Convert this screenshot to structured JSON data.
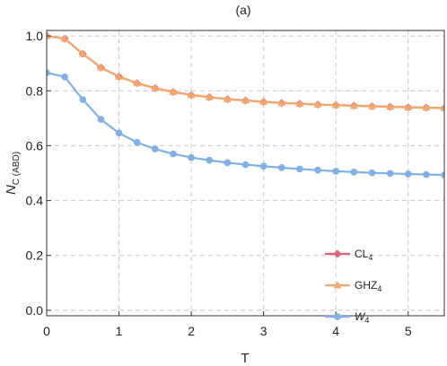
{
  "chart_data": {
    "type": "line",
    "title": "(a)",
    "xlabel": "T",
    "ylabel": "N",
    "ylabel_sub": "C (ABD)",
    "xlim": [
      0,
      5.5
    ],
    "ylim": [
      -0.02,
      1.02
    ],
    "x_ticks": [
      0,
      1,
      2,
      3,
      4,
      5
    ],
    "y_ticks": [
      0.0,
      0.2,
      0.4,
      0.6,
      0.8,
      1.0
    ],
    "x_tick_labels": [
      "0",
      "1",
      "2",
      "3",
      "4",
      "5"
    ],
    "y_tick_labels": [
      "0.0",
      "0.2",
      "0.4",
      "0.6",
      "0.8",
      "1.0"
    ],
    "grid": true,
    "legend_position": "bottom-right",
    "x": [
      0,
      0.25,
      0.5,
      0.75,
      1.0,
      1.25,
      1.5,
      1.75,
      2.0,
      2.25,
      2.5,
      2.75,
      3.0,
      3.25,
      3.5,
      3.75,
      4.0,
      4.25,
      4.5,
      4.75,
      5.0,
      5.25,
      5.5
    ],
    "series": [
      {
        "name": "CL",
        "name_sub": "4",
        "color": "#e0607e",
        "marker": "diamond",
        "values": [
          1.0,
          0.99,
          0.935,
          0.885,
          0.852,
          0.828,
          0.81,
          0.796,
          0.785,
          0.777,
          0.77,
          0.765,
          0.76,
          0.756,
          0.753,
          0.75,
          0.748,
          0.746,
          0.744,
          0.742,
          0.74,
          0.739,
          0.737
        ]
      },
      {
        "name": "GHZ",
        "name_sub": "4",
        "color": "#f4a76a",
        "marker": "triangle",
        "values": [
          1.0,
          0.99,
          0.935,
          0.885,
          0.852,
          0.828,
          0.81,
          0.796,
          0.785,
          0.777,
          0.77,
          0.765,
          0.76,
          0.756,
          0.753,
          0.75,
          0.748,
          0.746,
          0.744,
          0.742,
          0.74,
          0.739,
          0.737
        ]
      },
      {
        "name": "W",
        "name_sub": "4",
        "color": "#7fb0e8",
        "marker": "circle",
        "values": [
          0.866,
          0.851,
          0.768,
          0.696,
          0.646,
          0.612,
          0.588,
          0.57,
          0.557,
          0.547,
          0.538,
          0.531,
          0.525,
          0.52,
          0.515,
          0.511,
          0.507,
          0.504,
          0.501,
          0.499,
          0.497,
          0.495,
          0.493
        ]
      }
    ]
  }
}
